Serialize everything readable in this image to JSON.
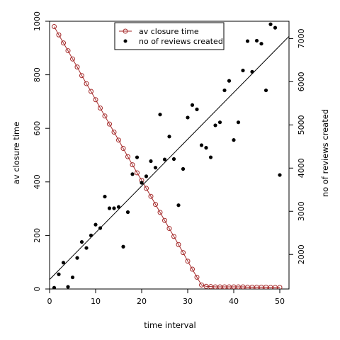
{
  "chart_data": {
    "type": "line",
    "title": "",
    "xlabel": "time interval",
    "ylabel_left": "av closure time",
    "ylabel_right": "no of reviews created",
    "xlim": [
      0,
      52
    ],
    "ylim_left": [
      0,
      1000
    ],
    "ylim_right": [
      1200,
      7400
    ],
    "x_ticks": [
      0,
      10,
      20,
      30,
      40,
      50
    ],
    "y_left_ticks": [
      0,
      200,
      400,
      600,
      800,
      1000
    ],
    "y_right_ticks": [
      2000,
      3000,
      4000,
      5000,
      6000,
      7000
    ],
    "grid": false,
    "legend_position": "top",
    "series": [
      {
        "name": "av closure time",
        "axis": "left",
        "kind": "line-with-open-circles",
        "color": "#a52a2a",
        "x": [
          1,
          2,
          3,
          4,
          5,
          6,
          7,
          8,
          9,
          10,
          11,
          12,
          13,
          14,
          15,
          16,
          17,
          18,
          19,
          20,
          21,
          22,
          23,
          24,
          25,
          26,
          27,
          28,
          29,
          30,
          31,
          32,
          33,
          34,
          35,
          36,
          37,
          38,
          39,
          40,
          41,
          42,
          43,
          44,
          45,
          46,
          47,
          48,
          49,
          50
        ],
        "y": [
          980,
          949,
          919,
          890,
          859,
          829,
          797,
          767,
          738,
          707,
          676,
          646,
          616,
          586,
          556,
          525,
          494,
          464,
          434,
          406,
          376,
          346,
          316,
          286,
          256,
          226,
          196,
          166,
          136,
          104,
          74,
          44,
          15,
          10,
          9,
          8,
          8,
          8,
          8,
          8,
          8,
          8,
          7,
          7,
          7,
          7,
          7,
          6,
          6,
          6
        ]
      },
      {
        "name": "no of reviews created",
        "axis": "right",
        "kind": "points",
        "color": "#000000",
        "x": [
          1,
          2,
          3,
          4,
          5,
          6,
          7,
          8,
          9,
          10,
          11,
          12,
          13,
          14,
          15,
          16,
          17,
          18,
          19,
          20,
          21,
          22,
          23,
          24,
          25,
          26,
          27,
          28,
          29,
          30,
          31,
          32,
          33,
          34,
          35,
          36,
          37,
          38,
          39,
          40,
          41,
          42,
          43,
          44,
          45,
          46,
          47,
          48,
          49,
          50
        ],
        "y": [
          1230,
          1540,
          1810,
          1250,
          1470,
          1920,
          2290,
          2150,
          2440,
          2690,
          2610,
          3340,
          3070,
          3070,
          3100,
          2180,
          2980,
          3860,
          4250,
          3660,
          3810,
          4160,
          4010,
          5240,
          4200,
          4730,
          4210,
          3140,
          3980,
          5170,
          5460,
          5360,
          4530,
          4470,
          4250,
          4990,
          5060,
          5800,
          6020,
          4650,
          5060,
          6260,
          6940,
          6230,
          6950,
          6880,
          5800,
          7330,
          7250,
          3840
        ]
      },
      {
        "name": "",
        "axis": "right",
        "kind": "trend-line",
        "color": "#000000",
        "x": [
          0,
          52
        ],
        "y": [
          1420,
          7050
        ]
      }
    ]
  }
}
